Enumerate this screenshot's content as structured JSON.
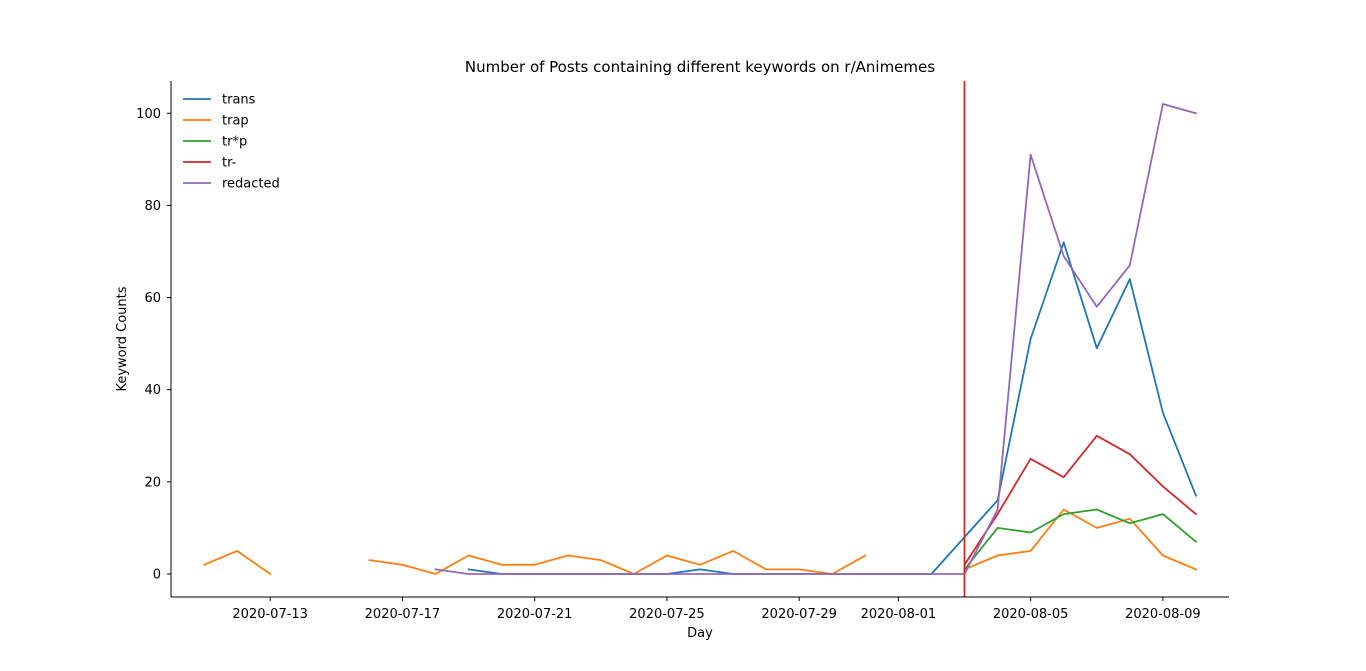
{
  "chart_data": {
    "type": "line",
    "title": "Number of Posts containing different keywords on r/Animemes",
    "xlabel": "Day",
    "ylabel": "Keyword Counts",
    "xlim": [
      "2020-07-10",
      "2020-08-11"
    ],
    "ylim": [
      -5,
      107
    ],
    "x_ticks": [
      "2020-07-13",
      "2020-07-17",
      "2020-07-21",
      "2020-07-25",
      "2020-07-29",
      "2020-08-01",
      "2020-08-05",
      "2020-08-09"
    ],
    "y_ticks": [
      0,
      20,
      40,
      60,
      80,
      100
    ],
    "grid": false,
    "legend_position": "top-left",
    "vertical_marker": {
      "x": "2020-08-03",
      "color": "#d62728"
    },
    "series": [
      {
        "name": "trans",
        "color": "#1f77b4",
        "points": [
          [
            "2020-07-19",
            1
          ],
          [
            "2020-07-20",
            0
          ],
          [
            "2020-07-21",
            0
          ],
          [
            "2020-07-22",
            0
          ],
          [
            "2020-07-23",
            0
          ],
          [
            "2020-07-24",
            0
          ],
          [
            "2020-07-25",
            0
          ],
          [
            "2020-07-26",
            1
          ],
          [
            "2020-07-27",
            0
          ],
          [
            "2020-07-28",
            0
          ],
          [
            "2020-07-29",
            0
          ],
          [
            "2020-07-30",
            0
          ],
          [
            "2020-07-31",
            0
          ],
          [
            "2020-08-01",
            0
          ],
          [
            "2020-08-02",
            0
          ],
          [
            "2020-08-03",
            8
          ],
          [
            "2020-08-04",
            16
          ],
          [
            "2020-08-05",
            51
          ],
          [
            "2020-08-06",
            72
          ],
          [
            "2020-08-07",
            49
          ],
          [
            "2020-08-08",
            64
          ],
          [
            "2020-08-09",
            35
          ],
          [
            "2020-08-10",
            17
          ]
        ]
      },
      {
        "name": "trap",
        "color": "#ff7f0e",
        "points": [
          [
            "2020-07-11",
            2
          ],
          [
            "2020-07-12",
            5
          ],
          [
            "2020-07-13",
            0
          ],
          [
            "2020-07-16",
            3
          ],
          [
            "2020-07-17",
            2
          ],
          [
            "2020-07-18",
            0
          ],
          [
            "2020-07-19",
            4
          ],
          [
            "2020-07-20",
            2
          ],
          [
            "2020-07-21",
            2
          ],
          [
            "2020-07-22",
            4
          ],
          [
            "2020-07-23",
            3
          ],
          [
            "2020-07-24",
            0
          ],
          [
            "2020-07-25",
            4
          ],
          [
            "2020-07-26",
            2
          ],
          [
            "2020-07-27",
            5
          ],
          [
            "2020-07-28",
            1
          ],
          [
            "2020-07-29",
            1
          ],
          [
            "2020-07-30",
            0
          ],
          [
            "2020-07-31",
            4
          ],
          [
            "2020-08-03",
            1
          ],
          [
            "2020-08-04",
            4
          ],
          [
            "2020-08-05",
            5
          ],
          [
            "2020-08-06",
            14
          ],
          [
            "2020-08-07",
            10
          ],
          [
            "2020-08-08",
            12
          ],
          [
            "2020-08-09",
            4
          ],
          [
            "2020-08-10",
            1
          ]
        ]
      },
      {
        "name": "tr*p",
        "color": "#2ca02c",
        "points": [
          [
            "2020-08-03",
            1
          ],
          [
            "2020-08-04",
            10
          ],
          [
            "2020-08-05",
            9
          ],
          [
            "2020-08-06",
            13
          ],
          [
            "2020-08-07",
            14
          ],
          [
            "2020-08-08",
            11
          ],
          [
            "2020-08-09",
            13
          ],
          [
            "2020-08-10",
            7
          ]
        ]
      },
      {
        "name": "tr-",
        "color": "#d62728",
        "points": [
          [
            "2020-08-03",
            2
          ],
          [
            "2020-08-04",
            13
          ],
          [
            "2020-08-05",
            25
          ],
          [
            "2020-08-06",
            21
          ],
          [
            "2020-08-07",
            30
          ],
          [
            "2020-08-08",
            26
          ],
          [
            "2020-08-09",
            19
          ],
          [
            "2020-08-10",
            13
          ]
        ]
      },
      {
        "name": "redacted",
        "color": "#9467bd",
        "points": [
          [
            "2020-07-18",
            1
          ],
          [
            "2020-07-19",
            0
          ],
          [
            "2020-07-20",
            0
          ],
          [
            "2020-07-21",
            0
          ],
          [
            "2020-07-22",
            0
          ],
          [
            "2020-07-23",
            0
          ],
          [
            "2020-07-24",
            0
          ],
          [
            "2020-07-25",
            0
          ],
          [
            "2020-07-26",
            0
          ],
          [
            "2020-07-27",
            0
          ],
          [
            "2020-07-28",
            0
          ],
          [
            "2020-07-29",
            0
          ],
          [
            "2020-07-30",
            0
          ],
          [
            "2020-07-31",
            0
          ],
          [
            "2020-08-01",
            0
          ],
          [
            "2020-08-02",
            0
          ],
          [
            "2020-08-03",
            0
          ],
          [
            "2020-08-04",
            14
          ],
          [
            "2020-08-05",
            91
          ],
          [
            "2020-08-06",
            69
          ],
          [
            "2020-08-07",
            58
          ],
          [
            "2020-08-08",
            67
          ],
          [
            "2020-08-09",
            102
          ],
          [
            "2020-08-10",
            100
          ]
        ]
      }
    ]
  }
}
